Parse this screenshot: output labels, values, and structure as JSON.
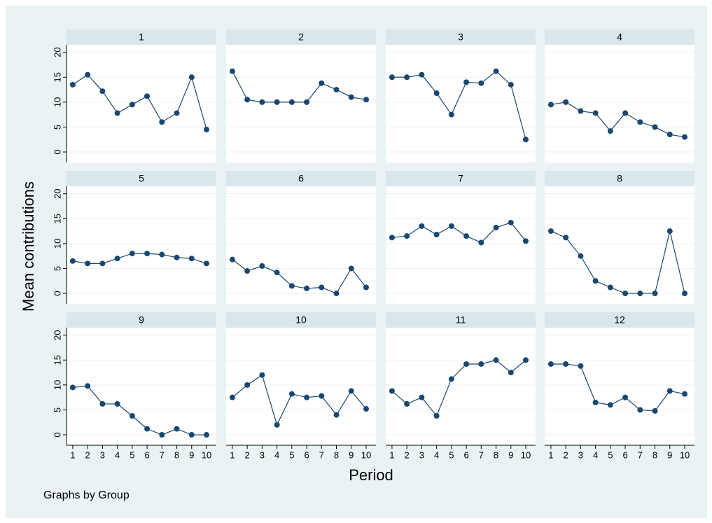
{
  "ylabel": "Mean contributions",
  "xlabel": "Period",
  "note": "Graphs by Group",
  "x": [
    1,
    2,
    3,
    4,
    5,
    6,
    7,
    8,
    9,
    10
  ],
  "xlim": [
    0.58,
    10.66
  ],
  "xticks": [
    1,
    2,
    3,
    4,
    5,
    6,
    7,
    8,
    9,
    10
  ],
  "ylim": [
    -2.1,
    21.5
  ],
  "yticks": [
    0,
    5,
    10,
    15,
    20
  ],
  "grid": true,
  "color": "#1a476f",
  "chart_data": [
    {
      "type": "line",
      "title": "1",
      "values": [
        13.5,
        15.5,
        12.2,
        7.8,
        9.5,
        11.2,
        6,
        7.8,
        15,
        4.5
      ]
    },
    {
      "type": "line",
      "title": "2",
      "values": [
        16.2,
        10.5,
        10,
        10,
        10,
        10,
        13.8,
        12.5,
        11,
        10.5
      ]
    },
    {
      "type": "line",
      "title": "3",
      "values": [
        15,
        15,
        15.5,
        11.8,
        7.5,
        14,
        13.8,
        16.2,
        13.5,
        2.5
      ]
    },
    {
      "type": "line",
      "title": "4",
      "values": [
        9.5,
        10,
        8.2,
        7.8,
        4.2,
        7.8,
        6,
        5,
        3.5,
        3
      ]
    },
    {
      "type": "line",
      "title": "5",
      "values": [
        6.5,
        6,
        6,
        7,
        8,
        8,
        7.8,
        7.2,
        7,
        6
      ]
    },
    {
      "type": "line",
      "title": "6",
      "values": [
        6.8,
        4.5,
        5.5,
        4.2,
        1.5,
        1,
        1.2,
        0,
        5,
        1.2
      ]
    },
    {
      "type": "line",
      "title": "7",
      "values": [
        11.2,
        11.5,
        13.5,
        11.8,
        13.5,
        11.5,
        10.2,
        13.2,
        14.2,
        10.5
      ]
    },
    {
      "type": "line",
      "title": "8",
      "values": [
        12.5,
        11.2,
        7.5,
        2.5,
        1.2,
        0,
        0,
        0,
        12.5,
        0
      ]
    },
    {
      "type": "line",
      "title": "9",
      "values": [
        9.5,
        9.8,
        6.2,
        6.2,
        3.8,
        1.2,
        0,
        1.2,
        0,
        0
      ]
    },
    {
      "type": "line",
      "title": "10",
      "values": [
        7.5,
        10,
        12,
        2,
        8.2,
        7.5,
        7.8,
        4,
        8.8,
        5.2
      ]
    },
    {
      "type": "line",
      "title": "11",
      "values": [
        8.8,
        6.2,
        7.5,
        3.8,
        11.2,
        14.2,
        14.2,
        15,
        12.5,
        15
      ]
    },
    {
      "type": "line",
      "title": "12",
      "values": [
        14.2,
        14.2,
        13.8,
        6.5,
        6,
        7.5,
        5,
        4.8,
        8.8,
        8.2
      ]
    }
  ]
}
